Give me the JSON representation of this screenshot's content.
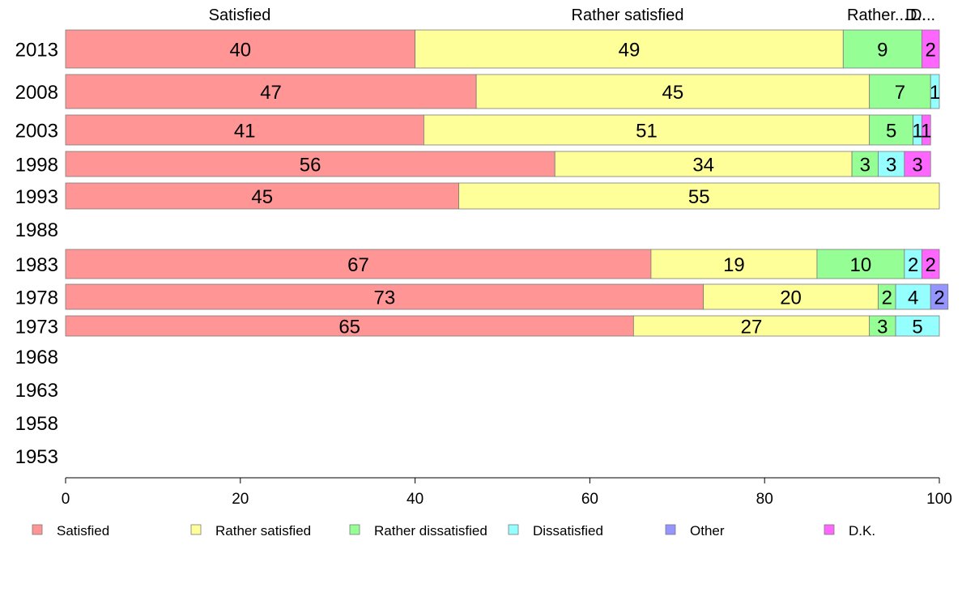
{
  "chart_data": {
    "type": "bar",
    "orientation": "horizontal",
    "stacked": true,
    "title": "",
    "xlabel": "",
    "ylabel": "",
    "xlim": [
      0,
      100
    ],
    "x_ticks": [
      "0",
      "20",
      "40",
      "60",
      "80",
      "100"
    ],
    "grid": false,
    "legend_position": "bottom",
    "categories": [
      "2013",
      "2008",
      "2003",
      "1998",
      "1993",
      "1988",
      "1983",
      "1978",
      "1973",
      "1968",
      "1963",
      "1958",
      "1953"
    ],
    "header_labels": [
      "Satisfied",
      "Rather satisfied",
      "Rather...",
      "D..",
      "D..."
    ],
    "series": [
      {
        "name": "Satisfied",
        "color": "#ff9595",
        "values": [
          40,
          47,
          41,
          56,
          45,
          null,
          67,
          73,
          65,
          null,
          null,
          null,
          null
        ]
      },
      {
        "name": "Rather satisfied",
        "color": "#ffff9a",
        "values": [
          49,
          45,
          51,
          34,
          55,
          null,
          19,
          20,
          27,
          null,
          null,
          null,
          null
        ]
      },
      {
        "name": "Rather dissatisfied",
        "color": "#95ff95",
        "values": [
          9,
          7,
          5,
          3,
          0,
          null,
          10,
          2,
          3,
          null,
          null,
          null,
          null
        ]
      },
      {
        "name": "Dissatisfied",
        "color": "#95ffff",
        "values": [
          0,
          1,
          1,
          3,
          0,
          null,
          2,
          4,
          5,
          null,
          null,
          null,
          null
        ]
      },
      {
        "name": "Other",
        "color": "#9595ff",
        "values": [
          0,
          0,
          0,
          0,
          0,
          null,
          0,
          2,
          0,
          null,
          null,
          null,
          null
        ]
      },
      {
        "name": "D.K.",
        "color": "#ff66ff",
        "values": [
          2,
          0,
          1,
          3,
          0,
          null,
          2,
          0,
          0,
          null,
          null,
          null,
          null
        ]
      }
    ],
    "data_labels": [
      [
        "40",
        "49",
        "9",
        "",
        "",
        "2"
      ],
      [
        "47",
        "45",
        "7",
        "1",
        "",
        ""
      ],
      [
        "41",
        "51",
        "5",
        "1",
        "",
        "1"
      ],
      [
        "56",
        "34",
        "3",
        "3",
        "",
        "3"
      ],
      [
        "45",
        "55",
        "",
        "",
        "",
        ""
      ],
      [
        "",
        "",
        "",
        "",
        "",
        ""
      ],
      [
        "67",
        "19",
        "10",
        "2",
        "",
        "2"
      ],
      [
        "73",
        "20",
        "2",
        "4",
        "2",
        ""
      ],
      [
        "65",
        "27",
        "3",
        "5",
        "",
        ""
      ],
      [
        "",
        "",
        "",
        "",
        "",
        ""
      ],
      [
        "",
        "",
        "",
        "",
        "",
        ""
      ],
      [
        "",
        "",
        "",
        "",
        "",
        ""
      ],
      [
        "",
        "",
        "",
        "",
        "",
        ""
      ]
    ]
  }
}
